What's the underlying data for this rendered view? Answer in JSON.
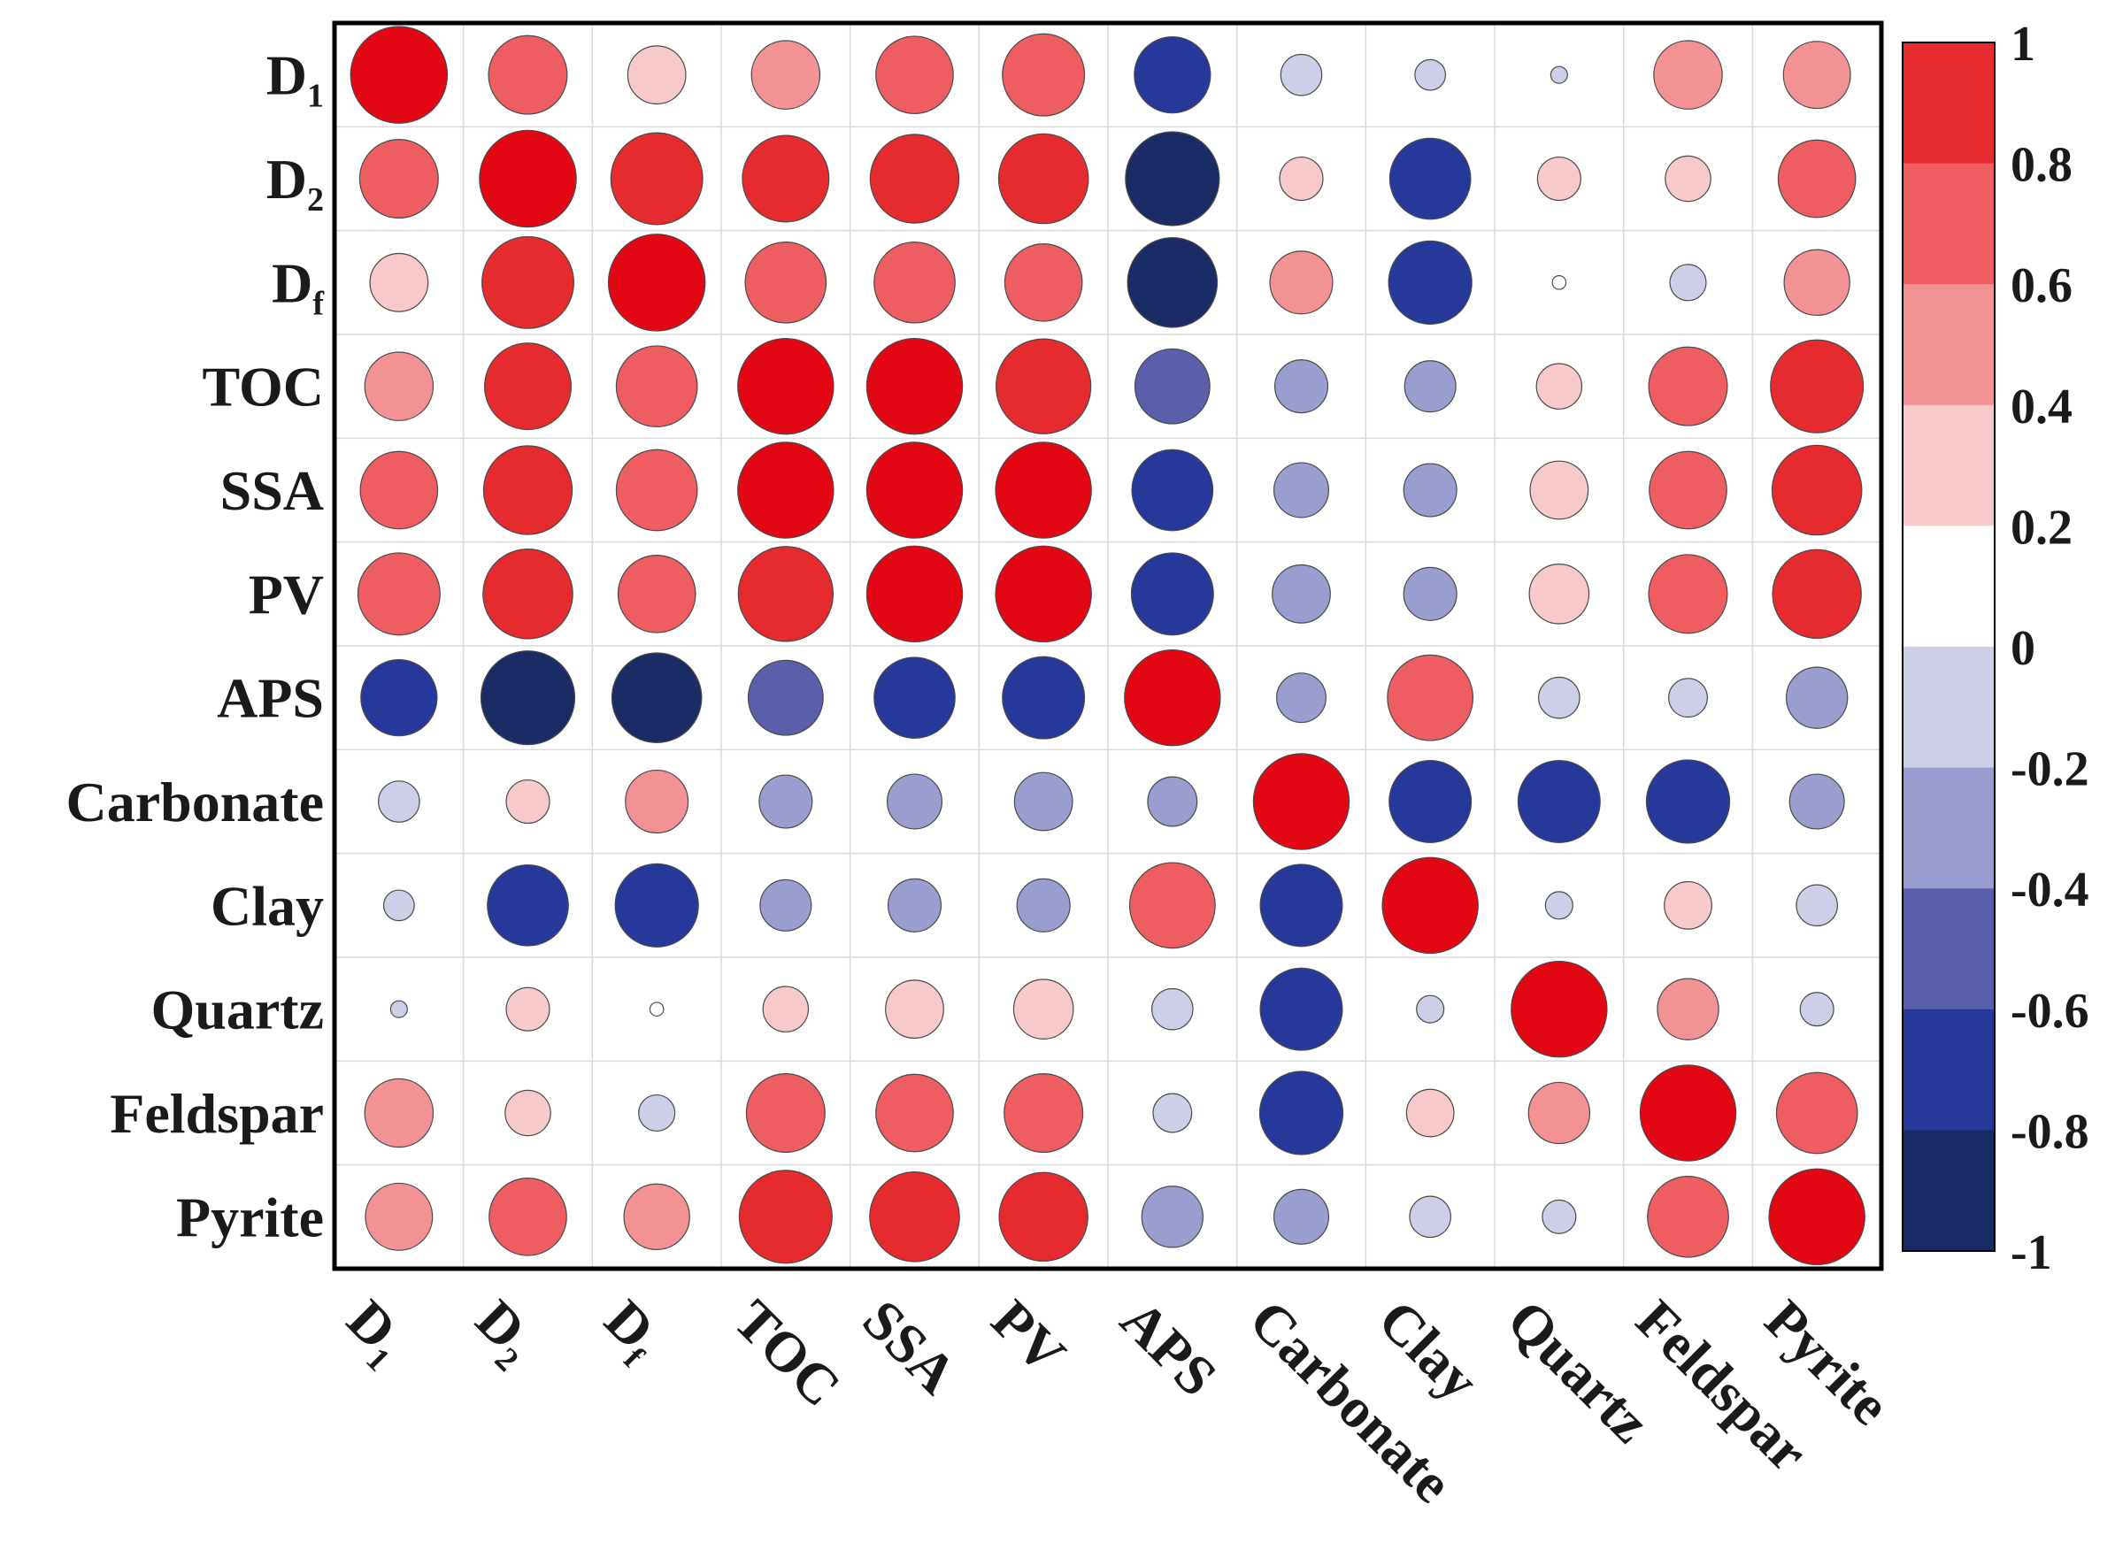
{
  "chart_data": {
    "type": "heatmap",
    "title": "",
    "xlabel": "",
    "ylabel": "",
    "variables": [
      {
        "base": "D",
        "sub": "1"
      },
      {
        "base": "D",
        "sub": "2"
      },
      {
        "base": "D",
        "sub": "f"
      },
      {
        "base": "TOC",
        "sub": ""
      },
      {
        "base": "SSA",
        "sub": ""
      },
      {
        "base": "PV",
        "sub": ""
      },
      {
        "base": "APS",
        "sub": ""
      },
      {
        "base": "Carbonate",
        "sub": ""
      },
      {
        "base": "Clay",
        "sub": ""
      },
      {
        "base": "Quartz",
        "sub": ""
      },
      {
        "base": "Feldspar",
        "sub": ""
      },
      {
        "base": "Pyrite",
        "sub": ""
      }
    ],
    "matrix": [
      [
        1.0,
        0.66,
        0.36,
        0.5,
        0.64,
        0.72,
        -0.62,
        -0.18,
        -0.1,
        -0.03,
        0.5,
        0.48
      ],
      [
        0.66,
        1.0,
        0.9,
        0.8,
        0.84,
        0.86,
        -0.94,
        0.2,
        -0.7,
        0.2,
        0.22,
        0.64
      ],
      [
        0.36,
        0.9,
        1.0,
        0.7,
        0.7,
        0.64,
        -0.86,
        0.42,
        -0.74,
        0.02,
        -0.14,
        0.46
      ],
      [
        0.5,
        0.8,
        0.7,
        0.98,
        0.98,
        0.96,
        -0.6,
        -0.3,
        -0.28,
        0.22,
        0.66,
        0.92
      ],
      [
        0.64,
        0.84,
        0.7,
        0.98,
        0.98,
        0.98,
        -0.7,
        -0.32,
        -0.3,
        0.36,
        0.64,
        0.86
      ],
      [
        0.72,
        0.86,
        0.64,
        0.96,
        0.98,
        0.98,
        -0.72,
        -0.36,
        -0.3,
        0.38,
        0.66,
        0.84
      ],
      [
        -0.62,
        -0.94,
        -0.86,
        -0.6,
        -0.7,
        -0.72,
        0.98,
        -0.26,
        0.78,
        -0.18,
        -0.16,
        -0.4
      ],
      [
        -0.18,
        0.2,
        0.42,
        -0.3,
        -0.32,
        -0.36,
        -0.26,
        0.98,
        -0.72,
        -0.72,
        -0.74,
        -0.32
      ],
      [
        -0.1,
        -0.7,
        -0.74,
        -0.28,
        -0.3,
        -0.3,
        0.78,
        -0.72,
        0.98,
        -0.08,
        0.24,
        -0.18
      ],
      [
        -0.03,
        0.2,
        0.02,
        0.22,
        0.36,
        0.38,
        -0.18,
        -0.72,
        -0.08,
        0.98,
        0.4,
        -0.12
      ],
      [
        0.5,
        0.22,
        -0.14,
        0.66,
        0.64,
        0.66,
        -0.16,
        -0.74,
        0.24,
        0.4,
        0.98,
        0.7
      ],
      [
        0.48,
        0.64,
        0.46,
        0.92,
        0.86,
        0.84,
        -0.4,
        -0.32,
        -0.18,
        -0.12,
        0.7,
        0.98
      ]
    ],
    "color_scale": {
      "range": [
        -1,
        1
      ],
      "tick_labels": [
        "1",
        "0.8",
        "0.6",
        "0.4",
        "0.2",
        "0",
        "-0.2",
        "-0.4",
        "-0.6",
        "-0.8",
        "-1"
      ],
      "bands": [
        {
          "from": 0.8,
          "to": 1.0,
          "color": "#e52b2e"
        },
        {
          "from": 0.6,
          "to": 0.8,
          "color": "#ee5d60"
        },
        {
          "from": 0.4,
          "to": 0.6,
          "color": "#f29294"
        },
        {
          "from": 0.2,
          "to": 0.4,
          "color": "#f8c9ca"
        },
        {
          "from": 0.0,
          "to": 0.2,
          "color": "#ffffff"
        },
        {
          "from": -0.2,
          "to": 0.0,
          "color": "#cdcfe6"
        },
        {
          "from": -0.4,
          "to": -0.2,
          "color": "#9a9dcf"
        },
        {
          "from": -0.6,
          "to": -0.4,
          "color": "#5a5eab"
        },
        {
          "from": -0.8,
          "to": -0.6,
          "color": "#27389b"
        },
        {
          "from": -1.0,
          "to": -0.8,
          "color": "#1b2b66"
        }
      ],
      "positive_color": "#e30613",
      "negative_color": "#1b2b66"
    }
  }
}
